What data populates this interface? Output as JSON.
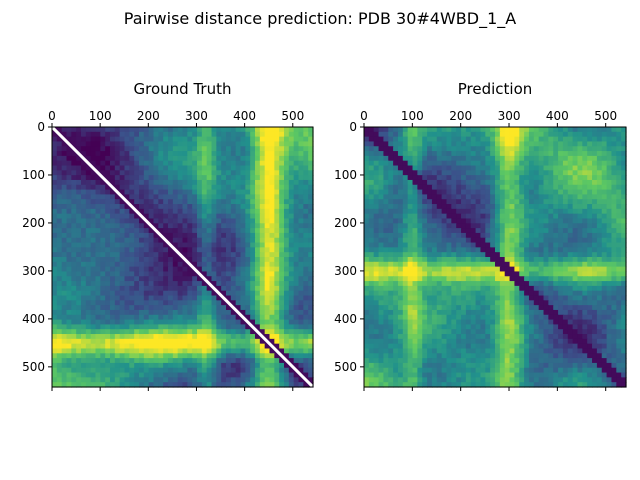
{
  "figure": {
    "title": "Pairwise distance prediction: PDB 30#4WBD_1_A"
  },
  "colormap": {
    "name": "viridis",
    "stops": [
      "#440154",
      "#3b528b",
      "#21918c",
      "#5ec962",
      "#fde725"
    ]
  },
  "chart_data": [
    {
      "type": "heatmap",
      "title": "Ground Truth",
      "xlabel": "",
      "ylabel": "",
      "size": 542,
      "xlim": [
        0,
        542
      ],
      "ylim": [
        542,
        0
      ],
      "xticks": [
        0,
        100,
        200,
        300,
        400,
        500
      ],
      "yticks": [
        0,
        100,
        200,
        300,
        400,
        500
      ],
      "diagonal_line": {
        "from": 0,
        "to": 542,
        "color": "#ffffff"
      },
      "bright_bands": [
        {
          "axis": "column",
          "center": 450,
          "width": 70,
          "intensity": 0.85
        },
        {
          "axis": "row",
          "center": 450,
          "width": 60,
          "intensity": 0.8
        },
        {
          "axis": "column",
          "center": 320,
          "width": 40,
          "intensity": 0.35
        }
      ],
      "grid": false
    },
    {
      "type": "heatmap",
      "title": "Prediction",
      "xlabel": "",
      "ylabel": "",
      "size": 542,
      "xlim": [
        0,
        542
      ],
      "ylim": [
        542,
        0
      ],
      "xticks": [
        0,
        100,
        200,
        300,
        400,
        500
      ],
      "yticks": [
        0,
        100,
        200,
        300,
        400,
        500
      ],
      "bright_bands": [
        {
          "axis": "column",
          "center": 300,
          "width": 60,
          "intensity": 0.6
        },
        {
          "axis": "row",
          "center": 300,
          "width": 50,
          "intensity": 0.55
        },
        {
          "axis": "column",
          "center": 100,
          "width": 40,
          "intensity": 0.35
        }
      ],
      "grid": false
    }
  ]
}
